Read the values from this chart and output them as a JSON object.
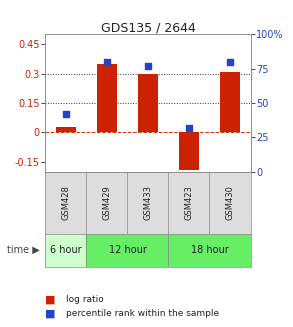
{
  "title": "GDS135 / 2644",
  "samples": [
    "GSM428",
    "GSM429",
    "GSM433",
    "GSM423",
    "GSM430"
  ],
  "log_ratio": [
    0.03,
    0.35,
    0.3,
    -0.19,
    0.31
  ],
  "percentile_rank": [
    42,
    80,
    77,
    32,
    80
  ],
  "bar_color": "#cc2200",
  "dot_color": "#2244cc",
  "ylim_left": [
    -0.2,
    0.5
  ],
  "ylim_right": [
    0,
    100
  ],
  "yticks_left": [
    -0.15,
    0.0,
    0.15,
    0.3,
    0.45
  ],
  "yticks_right": [
    0,
    25,
    50,
    75,
    100
  ],
  "hlines": [
    0.15,
    0.3
  ],
  "hline_zero_color": "#cc3300",
  "hline_dotted_color": "#333333",
  "bg_color": "#ffffff",
  "bar_width": 0.5,
  "gsm_bg": "#dddddd",
  "time_groups": [
    {
      "label": "6 hour",
      "start": 0,
      "end": 0,
      "color": "#ccffcc"
    },
    {
      "label": "12 hour",
      "start": 1,
      "end": 2,
      "color": "#66ee66"
    },
    {
      "label": "18 hour",
      "start": 3,
      "end": 4,
      "color": "#66ee66"
    }
  ],
  "legend_entries": [
    "log ratio",
    "percentile rank within the sample"
  ]
}
